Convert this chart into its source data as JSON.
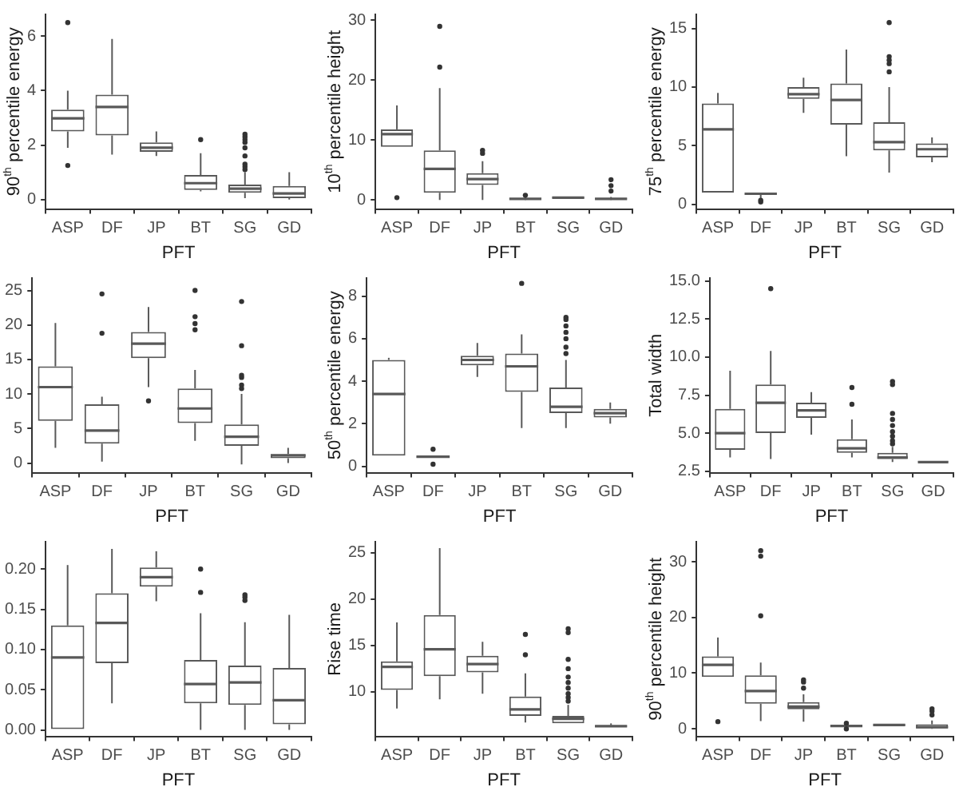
{
  "chart_data": [
    {
      "type": "box",
      "xlabel": "PFT",
      "ylabel": "90$^{th}$ percentile energy",
      "categories": [
        "ASP",
        "DF",
        "JP",
        "BT",
        "SG",
        "GD"
      ],
      "color": "#595959",
      "ylim": [
        -0.35,
        6.8
      ],
      "yticks": [
        0,
        2,
        4,
        6
      ],
      "boxes": [
        {
          "low": 1.9,
          "q1": 2.5,
          "median": 2.98,
          "q3": 3.3,
          "high": 4.0,
          "outliers": [
            6.5,
            1.25
          ]
        },
        {
          "low": 1.65,
          "q1": 2.35,
          "median": 3.4,
          "q3": 3.85,
          "high": 5.9
        },
        {
          "low": 1.6,
          "q1": 1.75,
          "median": 1.9,
          "q3": 2.1,
          "high": 2.5
        },
        {
          "low": 0.3,
          "q1": 0.35,
          "median": 0.6,
          "q3": 0.9,
          "high": 1.7,
          "outliers": [
            2.2
          ]
        },
        {
          "low": 0.05,
          "q1": 0.25,
          "median": 0.4,
          "q3": 0.55,
          "high": 1.0,
          "outliers": [
            1.1,
            1.2,
            1.3,
            1.6,
            1.9,
            2.1,
            2.2,
            2.3,
            2.4
          ]
        },
        {
          "low": 0.0,
          "q1": 0.05,
          "median": 0.22,
          "q3": 0.5,
          "high": 1.0
        }
      ]
    },
    {
      "type": "box",
      "xlabel": "PFT",
      "ylabel": "10$^{th}$ percentile height",
      "categories": [
        "ASP",
        "DF",
        "JP",
        "BT",
        "SG",
        "GD"
      ],
      "color": "#595959",
      "ylim": [
        -1.5,
        31
      ],
      "yticks": [
        0,
        10,
        20,
        30
      ],
      "boxes": [
        {
          "low": 8.9,
          "q1": 8.9,
          "median": 11,
          "q3": 11.8,
          "high": 15.8,
          "outliers": [
            0.4
          ]
        },
        {
          "low": 0,
          "q1": 1.2,
          "median": 5.2,
          "q3": 8.3,
          "high": 18.7,
          "outliers": [
            22.2,
            29
          ]
        },
        {
          "low": 0,
          "q1": 2.5,
          "median": 3.5,
          "q3": 4.5,
          "high": 6.5,
          "outliers": [
            7.8,
            8.3
          ]
        },
        {
          "low": 0,
          "q1": 0.1,
          "median": 0.2,
          "q3": 0.3,
          "high": 0.5,
          "outliers": [
            0.8
          ]
        },
        {
          "low": 0.3,
          "q1": 0.3,
          "median": 0.4,
          "q3": 0.5,
          "high": 0.5
        },
        {
          "low": 0,
          "q1": 0.1,
          "median": 0.2,
          "q3": 0.3,
          "high": 0.5,
          "outliers": [
            1.5,
            2.4,
            3.4
          ]
        }
      ]
    },
    {
      "type": "box",
      "xlabel": "PFT",
      "ylabel": "75$^{th}$ percentile energy",
      "categories": [
        "ASP",
        "DF",
        "JP",
        "BT",
        "SG",
        "GD"
      ],
      "color": "#595959",
      "ylim": [
        -0.4,
        16.2
      ],
      "yticks": [
        0,
        5,
        10,
        15
      ],
      "boxes": [
        {
          "low": 1.0,
          "q1": 1.0,
          "median": 6.4,
          "q3": 8.6,
          "high": 9.5
        },
        {
          "low": 0.5,
          "q1": 0.8,
          "median": 0.9,
          "q3": 1.0,
          "high": 1.0,
          "outliers": [
            0.2,
            0.35
          ]
        },
        {
          "low": 7.8,
          "q1": 9.0,
          "median": 9.4,
          "q3": 10.0,
          "high": 10.8
        },
        {
          "low": 4.1,
          "q1": 6.8,
          "median": 8.9,
          "q3": 10.3,
          "high": 13.2
        },
        {
          "low": 2.7,
          "q1": 4.6,
          "median": 5.3,
          "q3": 7.0,
          "high": 10.0,
          "outliers": [
            11.3,
            12.0,
            12.3,
            12.6,
            15.5
          ]
        },
        {
          "low": 3.6,
          "q1": 4.0,
          "median": 4.7,
          "q3": 5.2,
          "high": 5.7
        }
      ]
    },
    {
      "type": "box",
      "xlabel": "PFT",
      "categories": [
        "ASP",
        "DF",
        "JP",
        "BT",
        "SG",
        "GD"
      ],
      "color": "#595959",
      "ylim": [
        -1.4,
        26.8
      ],
      "yticks": [
        0,
        5,
        10,
        15,
        20,
        25
      ],
      "boxes": [
        {
          "low": 2.2,
          "q1": 6.1,
          "median": 11,
          "q3": 14,
          "high": 20.3
        },
        {
          "low": 0.2,
          "q1": 2.8,
          "median": 4.7,
          "q3": 8.5,
          "high": 9.6,
          "outliers": [
            18.8,
            24.5
          ]
        },
        {
          "low": 11,
          "q1": 15.2,
          "median": 17.3,
          "q3": 19,
          "high": 22.6,
          "outliers": [
            9.0
          ]
        },
        {
          "low": 3.2,
          "q1": 5.8,
          "median": 7.9,
          "q3": 10.8,
          "high": 13.5,
          "outliers": [
            19.3,
            20.2,
            21.2,
            25
          ]
        },
        {
          "low": -0.2,
          "q1": 2.5,
          "median": 3.8,
          "q3": 5.6,
          "high": 10,
          "outliers": [
            10.8,
            11.3,
            12.4,
            12.7,
            17.0,
            23.4
          ]
        },
        {
          "low": 0,
          "q1": 0.7,
          "median": 1.1,
          "q3": 1.3,
          "high": 2.2
        }
      ]
    },
    {
      "type": "box",
      "xlabel": "PFT",
      "ylabel": "50$^{th}$ percentile energy",
      "categories": [
        "ASP",
        "DF",
        "JP",
        "BT",
        "SG",
        "GD"
      ],
      "color": "#595959",
      "ylim": [
        -0.3,
        8.85
      ],
      "yticks": [
        0,
        2,
        4,
        6,
        8
      ],
      "boxes": [
        {
          "low": 0.5,
          "q1": 0.5,
          "median": 3.4,
          "q3": 5.0,
          "high": 5.1
        },
        {
          "low": 0.4,
          "q1": 0.4,
          "median": 0.45,
          "q3": 0.5,
          "high": 0.5,
          "outliers": [
            0.1,
            0.8
          ]
        },
        {
          "low": 4.2,
          "q1": 4.75,
          "median": 5.0,
          "q3": 5.2,
          "high": 5.8
        },
        {
          "low": 1.8,
          "q1": 3.5,
          "median": 4.7,
          "q3": 5.3,
          "high": 6.2,
          "outliers": [
            8.6
          ]
        },
        {
          "low": 1.8,
          "q1": 2.5,
          "median": 2.8,
          "q3": 3.7,
          "high": 5.0,
          "outliers": [
            5.3,
            5.6,
            6.0,
            6.3,
            6.6,
            6.9,
            7.0
          ]
        },
        {
          "low": 2.0,
          "q1": 2.3,
          "median": 2.5,
          "q3": 2.7,
          "high": 3.0
        }
      ]
    },
    {
      "type": "box",
      "xlabel": "PFT",
      "ylabel": "Total width",
      "categories": [
        "ASP",
        "DF",
        "JP",
        "BT",
        "SG",
        "GD"
      ],
      "color": "#595959",
      "ylim": [
        2.4,
        15.2
      ],
      "yticks": [
        {
          "value": 2.5,
          "label": "2.5"
        },
        {
          "value": 5,
          "label": "5.0"
        },
        {
          "value": 7.5,
          "label": "7.5"
        },
        {
          "value": 10,
          "label": "10.0"
        },
        {
          "value": 12.5,
          "label": "12.5"
        },
        {
          "value": 15,
          "label": "15.0"
        }
      ],
      "boxes": [
        {
          "low": 3.4,
          "q1": 3.9,
          "median": 5.0,
          "q3": 6.6,
          "high": 9.1
        },
        {
          "low": 3.3,
          "q1": 5.0,
          "median": 7.0,
          "q3": 8.2,
          "high": 10.4,
          "outliers": [
            14.5
          ]
        },
        {
          "low": 4.9,
          "q1": 6.0,
          "median": 6.5,
          "q3": 7.0,
          "high": 7.7
        },
        {
          "low": 3.4,
          "q1": 3.7,
          "median": 4.0,
          "q3": 4.6,
          "high": 5.9,
          "outliers": [
            6.9,
            8.0
          ]
        },
        {
          "low": 3.1,
          "q1": 3.3,
          "median": 3.4,
          "q3": 3.7,
          "high": 4.1,
          "outliers": [
            4.3,
            4.5,
            4.8,
            5.1,
            5.5,
            5.9,
            6.3,
            8.2,
            8.4
          ]
        },
        {
          "low": 3.1,
          "q1": 3.1,
          "median": 3.1,
          "q3": 3.15,
          "high": 3.15
        }
      ]
    },
    {
      "type": "box",
      "xlabel": "PFT",
      "categories": [
        "ASP",
        "DF",
        "JP",
        "BT",
        "SG",
        "GD"
      ],
      "color": "#595959",
      "ylim": [
        -0.008,
        0.234
      ],
      "yticks": [
        {
          "value": 0,
          "label": "0.00"
        },
        {
          "value": 0.05,
          "label": "0.05"
        },
        {
          "value": 0.1,
          "label": "0.10"
        },
        {
          "value": 0.15,
          "label": "0.15"
        },
        {
          "value": 0.2,
          "label": "0.20"
        }
      ],
      "boxes": [
        {
          "low": 0,
          "q1": 0,
          "median": 0.09,
          "q3": 0.13,
          "high": 0.205
        },
        {
          "low": 0.033,
          "q1": 0.083,
          "median": 0.133,
          "q3": 0.17,
          "high": 0.225
        },
        {
          "low": 0.16,
          "q1": 0.178,
          "median": 0.19,
          "q3": 0.202,
          "high": 0.222
        },
        {
          "low": 0,
          "q1": 0.033,
          "median": 0.057,
          "q3": 0.087,
          "high": 0.145,
          "outliers": [
            0.171,
            0.2
          ]
        },
        {
          "low": 0,
          "q1": 0.031,
          "median": 0.059,
          "q3": 0.08,
          "high": 0.134,
          "outliers": [
            0.161,
            0.165,
            0.168
          ]
        },
        {
          "low": 0,
          "q1": 0.007,
          "median": 0.037,
          "q3": 0.077,
          "high": 0.143
        }
      ]
    },
    {
      "type": "box",
      "xlabel": "PFT",
      "ylabel": "Rise time",
      "categories": [
        "ASP",
        "DF",
        "JP",
        "BT",
        "SG",
        "GD"
      ],
      "color": "#595959",
      "ylim": [
        5.2,
        26.2
      ],
      "yticks": [
        10,
        15,
        20,
        25
      ],
      "boxes": [
        {
          "low": 8.2,
          "q1": 10.2,
          "median": 12.7,
          "q3": 13.3,
          "high": 17.5
        },
        {
          "low": 9.2,
          "q1": 11.7,
          "median": 14.6,
          "q3": 18.3,
          "high": 25.5
        },
        {
          "low": 9.8,
          "q1": 12.1,
          "median": 13.0,
          "q3": 13.9,
          "high": 15.4
        },
        {
          "low": 6.7,
          "q1": 7.4,
          "median": 8.1,
          "q3": 9.5,
          "high": 12.0,
          "outliers": [
            14.0,
            16.2
          ]
        },
        {
          "low": 6.6,
          "q1": 6.6,
          "median": 7.1,
          "q3": 7.4,
          "high": 8.6,
          "outliers": [
            9.0,
            9.4,
            9.8,
            10.4,
            11.0,
            11.6,
            12.5,
            13.5,
            16.4,
            16.8
          ]
        },
        {
          "low": 6.2,
          "q1": 6.2,
          "median": 6.3,
          "q3": 6.4,
          "high": 6.6
        }
      ]
    },
    {
      "type": "box",
      "xlabel": "PFT",
      "ylabel": "90$^{th}$ percentile height",
      "categories": [
        "ASP",
        "DF",
        "JP",
        "BT",
        "SG",
        "GD"
      ],
      "color": "#595959",
      "ylim": [
        -1.35,
        33.6
      ],
      "yticks": [
        0,
        10,
        20,
        30
      ],
      "boxes": [
        {
          "low": 9.3,
          "q1": 9.3,
          "median": 11.5,
          "q3": 13.0,
          "high": 16.4,
          "outliers": [
            1.3
          ]
        },
        {
          "low": 1.4,
          "q1": 4.5,
          "median": 6.8,
          "q3": 9.6,
          "high": 11.9,
          "outliers": [
            20.3,
            31.0,
            32.0
          ]
        },
        {
          "low": 1.3,
          "q1": 3.5,
          "median": 4.0,
          "q3": 4.8,
          "high": 6.2,
          "outliers": [
            7.3,
            8.4,
            8.8
          ]
        },
        {
          "low": 0.1,
          "q1": 0.4,
          "median": 0.5,
          "q3": 0.6,
          "high": 0.8,
          "outliers": [
            0,
            1.0
          ]
        },
        {
          "low": 0.6,
          "q1": 0.6,
          "median": 0.7,
          "q3": 0.8,
          "high": 0.8
        },
        {
          "low": 0,
          "q1": 0.1,
          "median": 0.3,
          "q3": 0.8,
          "high": 1.5,
          "outliers": [
            2.5,
            3.2,
            3.6
          ]
        }
      ]
    }
  ]
}
